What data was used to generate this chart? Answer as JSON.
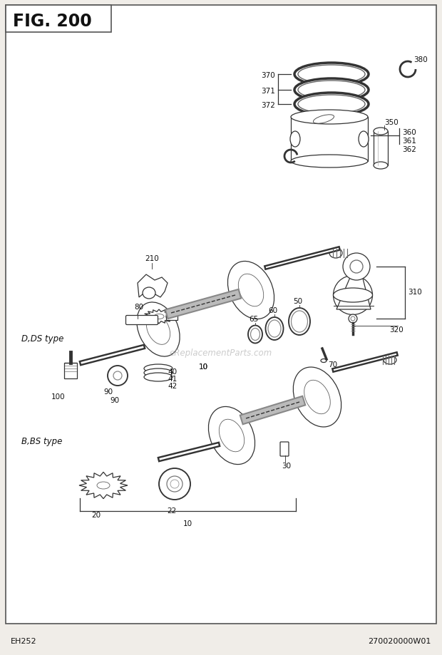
{
  "title": "FIG. 200",
  "bg_color": "#f0ede8",
  "border_color": "#555555",
  "text_color": "#111111",
  "fig_width": 6.2,
  "fig_height": 9.2,
  "footer_left": "EH252",
  "footer_right": "270020000W01",
  "watermark": "eReplacementParts.com",
  "lc": "#333333",
  "lw": 0.9,
  "fc_part": "#e8e8e8",
  "fc_shadow": "#cccccc"
}
